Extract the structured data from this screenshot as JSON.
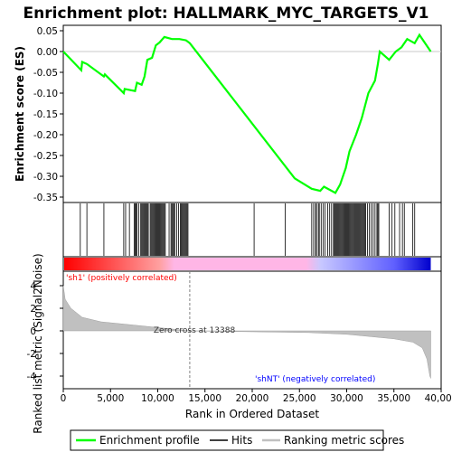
{
  "chart_data": {
    "type": "line",
    "title": "Enrichment plot: HALLMARK_MYC_TARGETS_V1",
    "ylabel_top": "Enrichment score (ES)",
    "ylabel_bottom": "Ranked list metric (Signal2Noise)",
    "xlabel": "Rank in Ordered Dataset",
    "x_range": [
      0,
      40000
    ],
    "es_ylim": [
      -0.35,
      0.05
    ],
    "metric_ylim": [
      -4,
      4
    ],
    "x_ticks": [
      "0",
      "5,000",
      "10,000",
      "15,000",
      "20,000",
      "25,000",
      "30,000",
      "35,000",
      "40,000"
    ],
    "x_tick_values": [
      0,
      5000,
      10000,
      15000,
      20000,
      25000,
      30000,
      35000,
      40000
    ],
    "es_ticks": [
      "-0.35",
      "-0.30",
      "-0.25",
      "-0.20",
      "-0.15",
      "-0.10",
      "-0.05",
      "0.00",
      "0.05"
    ],
    "es_tick_values": [
      -0.35,
      -0.3,
      -0.25,
      -0.2,
      -0.15,
      -0.1,
      -0.05,
      0.0,
      0.05
    ],
    "metric_ticks": [
      "-4",
      "-2",
      "0",
      "2",
      "4"
    ],
    "metric_tick_values": [
      -4,
      -2,
      0,
      2,
      4
    ],
    "total_rank": 38900,
    "zero_cross": 13388,
    "annotations": {
      "zero_cross": "Zero cross at 13388",
      "positive": "'sh1' (positively correlated)",
      "negative": "'shNT' (negatively correlated)"
    },
    "series": [
      {
        "name": "Enrichment profile",
        "color": "#00ff00",
        "x": [
          0,
          1900,
          2000,
          2500,
          4300,
          4400,
          6400,
          6500,
          7600,
          7800,
          8300,
          8600,
          8900,
          9400,
          9800,
          10200,
          10700,
          11500,
          12300,
          13000,
          13400,
          24500,
          26300,
          27200,
          27600,
          28800,
          29300,
          29900,
          30300,
          31000,
          31600,
          32300,
          33000,
          33300,
          33500,
          34500,
          35200,
          35800,
          36400,
          37200,
          37700,
          38900
        ],
        "y": [
          0.0,
          -0.045,
          -0.025,
          -0.03,
          -0.06,
          -0.055,
          -0.1,
          -0.09,
          -0.095,
          -0.075,
          -0.08,
          -0.06,
          -0.02,
          -0.015,
          0.015,
          0.022,
          0.035,
          0.03,
          0.03,
          0.027,
          0.02,
          -0.305,
          -0.33,
          -0.335,
          -0.325,
          -0.34,
          -0.32,
          -0.28,
          -0.24,
          -0.2,
          -0.16,
          -0.1,
          -0.07,
          -0.03,
          0.0,
          -0.02,
          0.0,
          0.01,
          0.03,
          0.02,
          0.04,
          0.0
        ]
      }
    ],
    "hits_label": "Hits",
    "hits": [
      1800,
      2500,
      4300,
      6400,
      6600,
      7000,
      7500,
      7600,
      7700,
      7800,
      8000,
      8200,
      8300,
      8400,
      8500,
      8600,
      8700,
      8800,
      8900,
      9000,
      9200,
      9300,
      9400,
      9500,
      9600,
      9700,
      9800,
      9900,
      10000,
      10100,
      10200,
      10300,
      10400,
      10500,
      10600,
      10700,
      10800,
      11200,
      11400,
      11500,
      11600,
      11700,
      11800,
      12000,
      12200,
      12400,
      12500,
      12600,
      12700,
      12800,
      12900,
      13000,
      13100,
      13200,
      20200,
      23500,
      26300,
      26500,
      26700,
      26800,
      27000,
      27100,
      27300,
      27500,
      27700,
      28000,
      28200,
      28400,
      28600,
      28700,
      28800,
      28900,
      29000,
      29100,
      29200,
      29300,
      29400,
      29500,
      29600,
      29700,
      29800,
      29900,
      30000,
      30100,
      30200,
      30300,
      30400,
      30500,
      30600,
      30700,
      30800,
      30900,
      31000,
      31100,
      31200,
      31300,
      31400,
      31500,
      31600,
      31700,
      31800,
      31900,
      32000,
      32200,
      32400,
      32600,
      32800,
      33000,
      33200,
      33300,
      33400,
      34500,
      34800,
      35100,
      35600,
      35900,
      36100,
      37000,
      37200
    ],
    "metric_label": "Ranking metric scores",
    "metric_profile": {
      "x": [
        0,
        200,
        800,
        2000,
        4000,
        7000,
        10000,
        13388,
        26000,
        30000,
        35000,
        37000,
        38000,
        38500,
        38800,
        38900
      ],
      "y": [
        4.0,
        2.8,
        2.0,
        1.2,
        0.8,
        0.55,
        0.3,
        0.0,
        -0.15,
        -0.3,
        -0.7,
        -1.0,
        -1.5,
        -2.5,
        -4.0,
        -4.2
      ]
    },
    "legend": [
      "Enrichment profile",
      "Hits",
      "Ranking metric scores"
    ],
    "colors": {
      "es_line": "#00ff00",
      "hits": "#000000",
      "metric_fill": "#c0c0c0",
      "positive_text": "#ff0000",
      "negative_text": "#0000ff",
      "zero_cross_line": "#808080"
    }
  }
}
